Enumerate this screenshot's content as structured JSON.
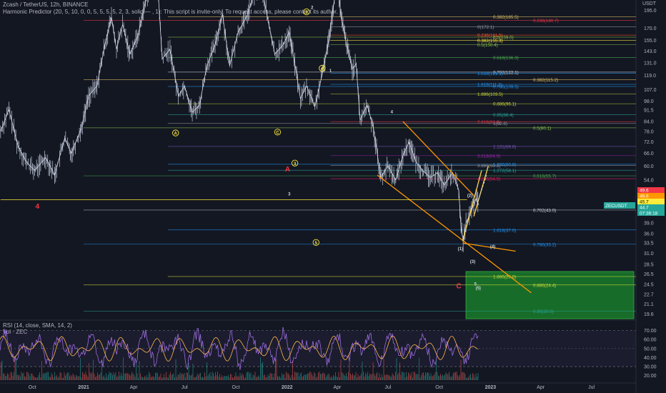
{
  "header": {
    "symbol_line": "Zcash / TetherUS, 12h, BINANCE",
    "indicator_line": "Harmonic Predictor (20, 5, 10, 0, 0, 5, 5, 5, 5, 2, 3, solid — , 1): This script is invite-only. To request access, please contact its author.",
    "currency": "USDT"
  },
  "rsi_panel": {
    "label": "RSI (14, close, SMA, 14, 2)",
    "volume_label": "Vol · ZEC"
  },
  "price_tags": [
    {
      "text": "49.6",
      "color": "#f23645"
    },
    {
      "text": "46.6",
      "color": "#ff9800"
    },
    {
      "text": "45.7",
      "color": "#ffeb3b"
    },
    {
      "text": "44.7",
      "color": "#26a69a"
    },
    {
      "text": "07:36:18",
      "color": "#26a69a"
    }
  ],
  "ticker_tag": "ZECUSDT",
  "fib_labels": [
    {
      "text": "0.382(185.5)",
      "price": 185.5,
      "color": "#e0c060",
      "side": "right"
    },
    {
      "text": "0.236(180.7)",
      "price": 180.7,
      "color": "#f23645",
      "side": "far"
    },
    {
      "text": "0(172.1)",
      "price": 172.1,
      "color": "#9598a1",
      "side": "left"
    },
    {
      "text": "0.236(161.5)",
      "price": 161.5,
      "color": "#ff5722",
      "side": "left"
    },
    {
      "text": "0.5(159.0)",
      "price": 159.0,
      "color": "#8bc34a",
      "side": "right"
    },
    {
      "text": "0.382(155.3)",
      "price": 155.3,
      "color": "#ffeb3b",
      "side": "left"
    },
    {
      "text": "0.5(150.4)",
      "price": 150.4,
      "color": "#8bc34a",
      "side": "left"
    },
    {
      "text": "0.618(136.3)",
      "price": 136.3,
      "color": "#4caf50",
      "side": "right"
    },
    {
      "text": "0.702(122.1)",
      "price": 122.1,
      "color": "#d1d4dc",
      "side": "right"
    },
    {
      "text": "1.618(121.1)",
      "price": 121.1,
      "color": "#2196f3",
      "side": "left"
    },
    {
      "text": "0.382(115.2)",
      "price": 115.2,
      "color": "#e0c060",
      "side": "far"
    },
    {
      "text": "1.618(111.3)",
      "price": 111.3,
      "color": "#2196f3",
      "side": "left"
    },
    {
      "text": "0.786(109.5)",
      "price": 109.5,
      "color": "#2196f3",
      "side": "right"
    },
    {
      "text": "1.886(103.5)",
      "price": 103.5,
      "color": "#cddc39",
      "side": "left"
    },
    {
      "text": "0.886(96.1)",
      "price": 96.1,
      "color": "#cddc39",
      "side": "right"
    },
    {
      "text": "0.95(88.4)",
      "price": 88.4,
      "color": "#26a69a",
      "side": "right"
    },
    {
      "text": "2.618(83.9)",
      "price": 83.9,
      "color": "#f23645",
      "side": "left"
    },
    {
      "text": "1(82.8)",
      "price": 82.8,
      "color": "#9598a1",
      "side": "right"
    },
    {
      "text": "0.5(80.1)",
      "price": 80.1,
      "color": "#8bc34a",
      "side": "far"
    },
    {
      "text": "1.131(69.6)",
      "price": 69.6,
      "color": "#7e57c2",
      "side": "right"
    },
    {
      "text": "3.618(64.9)",
      "price": 64.9,
      "color": "#9c27b0",
      "side": "left"
    },
    {
      "text": "1.236(60.8)",
      "price": 60.8,
      "color": "#2196f3",
      "side": "right"
    },
    {
      "text": "3.886(60.3)",
      "price": 60.3,
      "color": "#9598a1",
      "side": "left"
    },
    {
      "text": "1.272(58.1)",
      "price": 58.1,
      "color": "#26a69a",
      "side": "right"
    },
    {
      "text": "0.618(55.7)",
      "price": 55.7,
      "color": "#4caf50",
      "side": "far"
    },
    {
      "text": "4.236(54.5)",
      "price": 54.5,
      "color": "#e91e63",
      "side": "left"
    },
    {
      "text": "0.702(43.0)",
      "price": 43.0,
      "color": "#d1d4dc",
      "side": "far"
    },
    {
      "text": "1.618(37.0)",
      "price": 37.0,
      "color": "#2196f3",
      "side": "right"
    },
    {
      "text": "0.786(33.2)",
      "price": 33.2,
      "color": "#2196f3",
      "side": "far"
    },
    {
      "text": "1.886(26.0)",
      "price": 26.0,
      "color": "#cddc39",
      "side": "right"
    },
    {
      "text": "0.886(24.4)",
      "price": 24.4,
      "color": "#cddc39",
      "side": "far"
    },
    {
      "text": "0.95(20.0)",
      "price": 20.0,
      "color": "#26a69a",
      "side": "far"
    }
  ],
  "wave_labels": [
    {
      "text": "A",
      "color": "#ffeb3b",
      "ring": true
    },
    {
      "text": "C",
      "color": "#ffeb3b",
      "ring": true
    },
    {
      "text": "2",
      "color": "#ffeb3b",
      "ring": true
    },
    {
      "text": "3",
      "color": "#ffeb3b",
      "ring": true
    },
    {
      "text": "4",
      "color": "#ffeb3b",
      "ring": true
    },
    {
      "text": "5",
      "color": "#ffeb3b",
      "ring": true
    },
    {
      "text": "1",
      "color": "#d1d4dc",
      "ring": false
    },
    {
      "text": "2",
      "color": "#d1d4dc",
      "ring": false
    },
    {
      "text": "3",
      "color": "#d1d4dc",
      "ring": false
    },
    {
      "text": "4",
      "color": "#d1d4dc",
      "ring": false
    },
    {
      "text": "A",
      "color": "#f23645",
      "ring": false
    },
    {
      "text": "C",
      "color": "#f23645",
      "ring": false
    },
    {
      "text": "4",
      "color": "#f23645",
      "ring": false
    },
    {
      "text": "(1)",
      "color": "#d1d4dc",
      "ring": false
    },
    {
      "text": "(2)",
      "color": "#d1d4dc",
      "ring": false
    },
    {
      "text": "(3)",
      "color": "#d1d4dc",
      "ring": false
    },
    {
      "text": "(4)",
      "color": "#d1d4dc",
      "ring": false
    },
    {
      "text": "(5)",
      "color": "#d1d4dc",
      "ring": false
    },
    {
      "text": "5",
      "color": "#d1d4dc",
      "ring": false
    }
  ],
  "chart_data": {
    "type": "line",
    "title": "Zcash / TetherUS, 12h, BINANCE",
    "ylabel": "USDT",
    "yscale": "log",
    "ylim": [
      18.7,
      205
    ],
    "y_ticks": [
      195.0,
      170.0,
      155.0,
      143.0,
      131.0,
      119.0,
      107.0,
      98.0,
      91.5,
      84.0,
      78.0,
      72.0,
      66.0,
      60.0,
      54.0,
      39.0,
      36.0,
      33.5,
      31.0,
      28.5,
      26.5,
      24.5,
      22.7,
      21.1,
      19.6
    ],
    "x_ticks": [
      "Oct",
      "2021",
      "Apr",
      "Jul",
      "Oct",
      "2022",
      "Apr",
      "Jul",
      "Oct",
      "2023",
      "Apr",
      "Jul"
    ],
    "x_tick_dates": [
      "2020-10-01",
      "2021-01-01",
      "2021-04-01",
      "2021-07-01",
      "2021-10-01",
      "2022-01-01",
      "2022-04-01",
      "2022-07-01",
      "2022-10-01",
      "2023-01-01",
      "2023-04-01",
      "2023-07-01"
    ],
    "x_range": [
      "2020-08-04",
      "2023-09-19"
    ],
    "series": [
      {
        "values": [
          [
            "2020-08-05",
            78
          ],
          [
            "2020-08-20",
            92
          ],
          [
            "2020-09-05",
            70
          ],
          [
            "2020-09-20",
            62
          ],
          [
            "2020-10-05",
            58
          ],
          [
            "2020-10-25",
            64
          ],
          [
            "2020-11-10",
            56
          ],
          [
            "2020-11-28",
            74
          ],
          [
            "2020-12-10",
            66
          ],
          [
            "2020-12-28",
            80
          ],
          [
            "2021-01-10",
            102
          ],
          [
            "2021-01-25",
            110
          ],
          [
            "2021-02-08",
            150
          ],
          [
            "2021-02-20",
            185
          ],
          [
            "2021-03-01",
            145
          ],
          [
            "2021-03-12",
            175
          ],
          [
            "2021-03-25",
            140
          ],
          [
            "2021-04-08",
            160
          ],
          [
            "2021-04-20",
            200
          ],
          [
            "2021-05-01",
            240
          ],
          [
            "2021-05-12",
            270
          ],
          [
            "2021-05-22",
            135
          ],
          [
            "2021-06-05",
            145
          ],
          [
            "2021-06-20",
            102
          ],
          [
            "2021-07-01",
            110
          ],
          [
            "2021-07-15",
            90
          ],
          [
            "2021-07-28",
            95
          ],
          [
            "2021-08-10",
            128
          ],
          [
            "2021-08-25",
            150
          ],
          [
            "2021-09-07",
            190
          ],
          [
            "2021-09-20",
            128
          ],
          [
            "2021-10-05",
            165
          ],
          [
            "2021-10-20",
            185
          ],
          [
            "2021-11-05",
            225
          ],
          [
            "2021-11-15",
            240
          ],
          [
            "2021-11-28",
            180
          ],
          [
            "2021-12-10",
            140
          ],
          [
            "2021-12-25",
            150
          ],
          [
            "2022-01-05",
            165
          ],
          [
            "2022-01-15",
            130
          ],
          [
            "2022-01-25",
            100
          ],
          [
            "2022-02-05",
            110
          ],
          [
            "2022-02-20",
            94
          ],
          [
            "2022-03-05",
            120
          ],
          [
            "2022-03-15",
            150
          ],
          [
            "2022-03-25",
            200
          ],
          [
            "2022-04-01",
            245
          ],
          [
            "2022-04-08",
            185
          ],
          [
            "2022-04-18",
            150
          ],
          [
            "2022-04-28",
            125
          ],
          [
            "2022-05-05",
            130
          ],
          [
            "2022-05-12",
            85
          ],
          [
            "2022-05-25",
            95
          ],
          [
            "2022-06-05",
            80
          ],
          [
            "2022-06-18",
            55
          ],
          [
            "2022-07-01",
            60
          ],
          [
            "2022-07-15",
            54
          ],
          [
            "2022-07-28",
            65
          ],
          [
            "2022-08-08",
            72
          ],
          [
            "2022-08-20",
            62
          ],
          [
            "2022-09-01",
            58
          ],
          [
            "2022-09-15",
            55
          ],
          [
            "2022-09-28",
            57
          ],
          [
            "2022-10-10",
            52
          ],
          [
            "2022-10-25",
            57
          ],
          [
            "2022-11-05",
            50
          ],
          [
            "2022-11-09",
            38
          ],
          [
            "2022-11-13",
            34
          ],
          [
            "2022-11-18",
            39
          ],
          [
            "2022-11-24",
            41
          ],
          [
            "2022-11-30",
            44
          ],
          [
            "2022-12-06",
            47
          ],
          [
            "2022-12-11",
            44.7
          ]
        ]
      }
    ],
    "rsi": {
      "ylim": [
        15,
        80
      ],
      "y_ticks": [
        70.0,
        60.0,
        50.0,
        40.0,
        30.0,
        20.0
      ],
      "bands": [
        30,
        70
      ]
    },
    "grid": false,
    "legend_position": "top-left"
  }
}
